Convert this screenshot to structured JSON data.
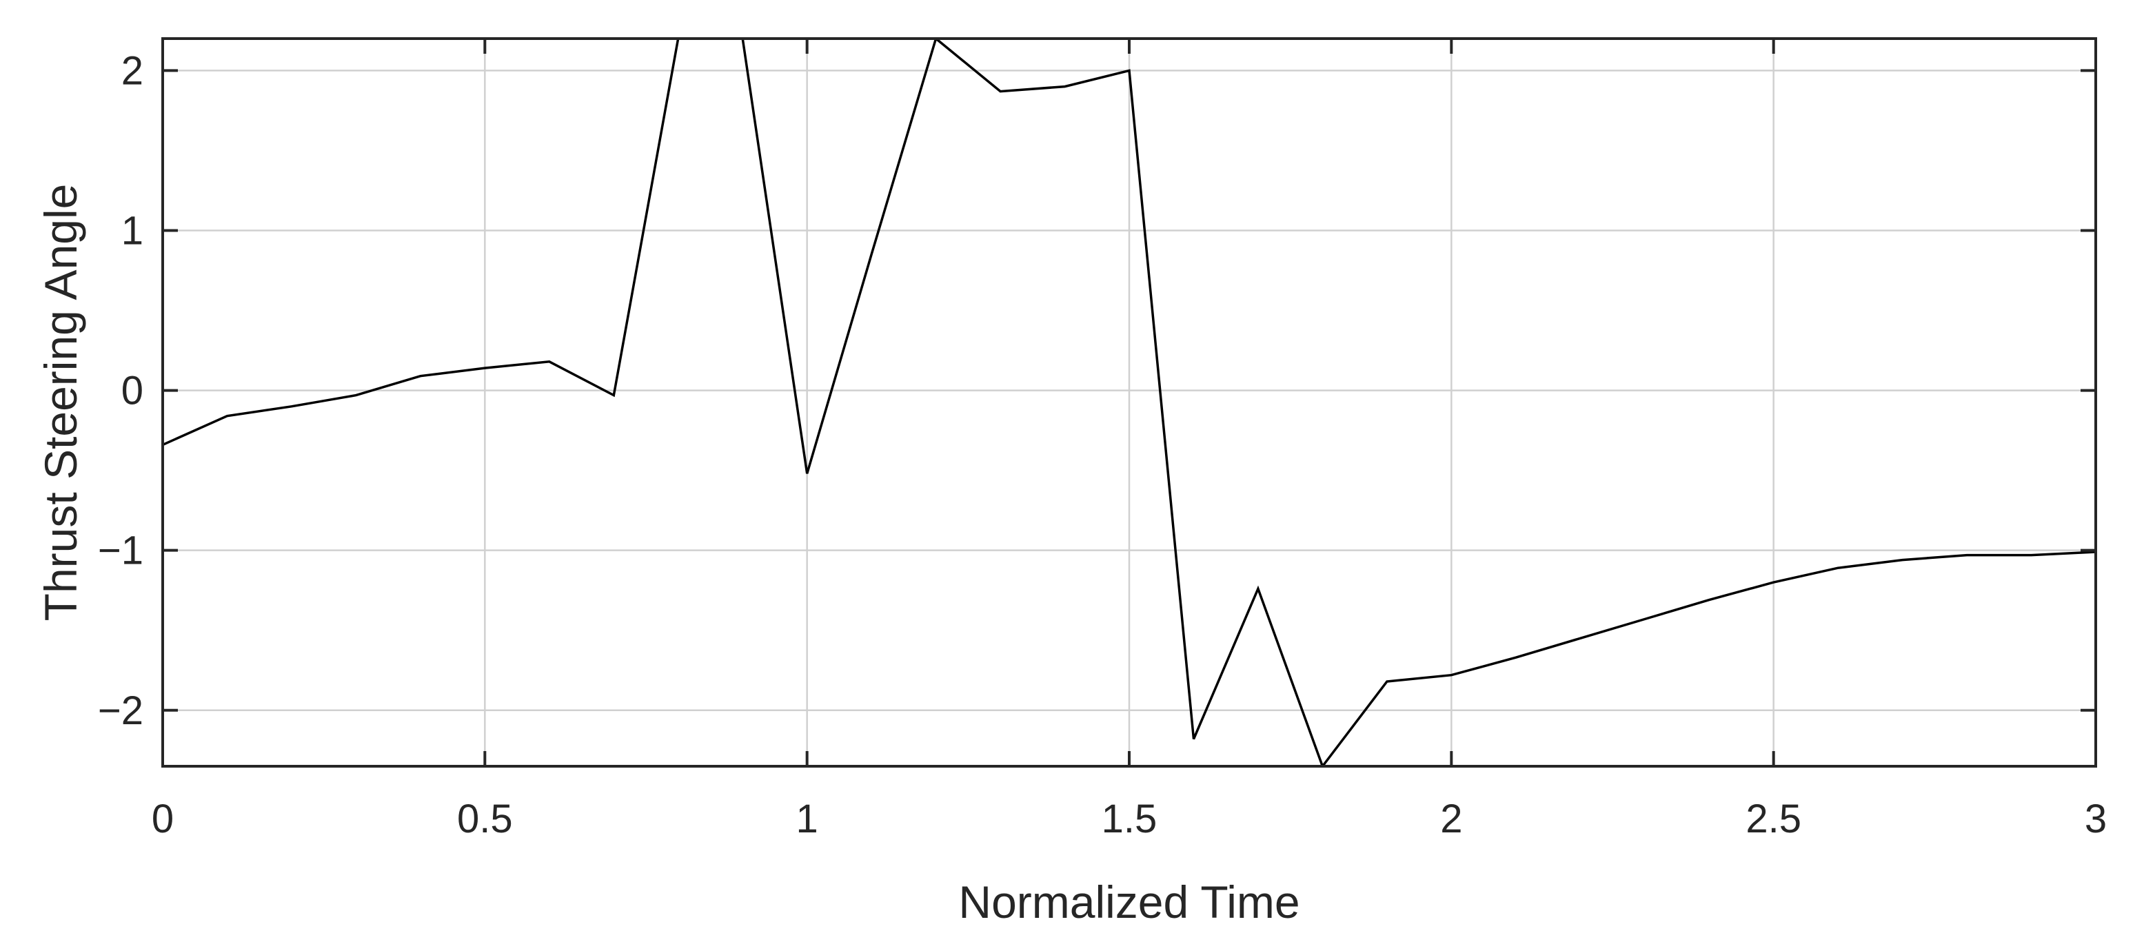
{
  "chart_data": {
    "type": "line",
    "title": "",
    "xlabel": "Normalized Time",
    "ylabel": "Thrust Steering Angle",
    "xlim": [
      0,
      3
    ],
    "ylim": [
      -2.35,
      2.2
    ],
    "xticks": [
      0,
      0.5,
      1,
      1.5,
      2,
      2.5,
      3
    ],
    "xtick_labels": [
      "0",
      "0.5",
      "1",
      "1.5",
      "2",
      "2.5",
      "3"
    ],
    "yticks": [
      -2,
      -1,
      0,
      1,
      2
    ],
    "ytick_labels": [
      "−2",
      "−1",
      "0",
      "1",
      "2"
    ],
    "grid": true,
    "line_color": "#000000",
    "series": [
      {
        "x": [
          0,
          0.1,
          0.2,
          0.3,
          0.4,
          0.5,
          0.6,
          0.7,
          0.8,
          0.9,
          1.0,
          1.1,
          1.2,
          1.3,
          1.4,
          1.5,
          1.6,
          1.7,
          1.8,
          1.9,
          2.0,
          2.1,
          2.2,
          2.3,
          2.4,
          2.5,
          2.6,
          2.7,
          2.8,
          2.9,
          3.0
        ],
        "values": [
          -0.34,
          -0.16,
          -0.1,
          -0.03,
          0.09,
          0.14,
          0.18,
          -0.03,
          2.2,
          2.2,
          -0.52,
          0.85,
          2.2,
          1.87,
          1.9,
          2.0,
          -2.18,
          -1.24,
          -2.35,
          -1.82,
          -1.78,
          -1.67,
          -1.55,
          -1.43,
          -1.31,
          -1.2,
          -1.11,
          -1.06,
          -1.03,
          -1.03,
          -1.01
        ]
      }
    ]
  }
}
